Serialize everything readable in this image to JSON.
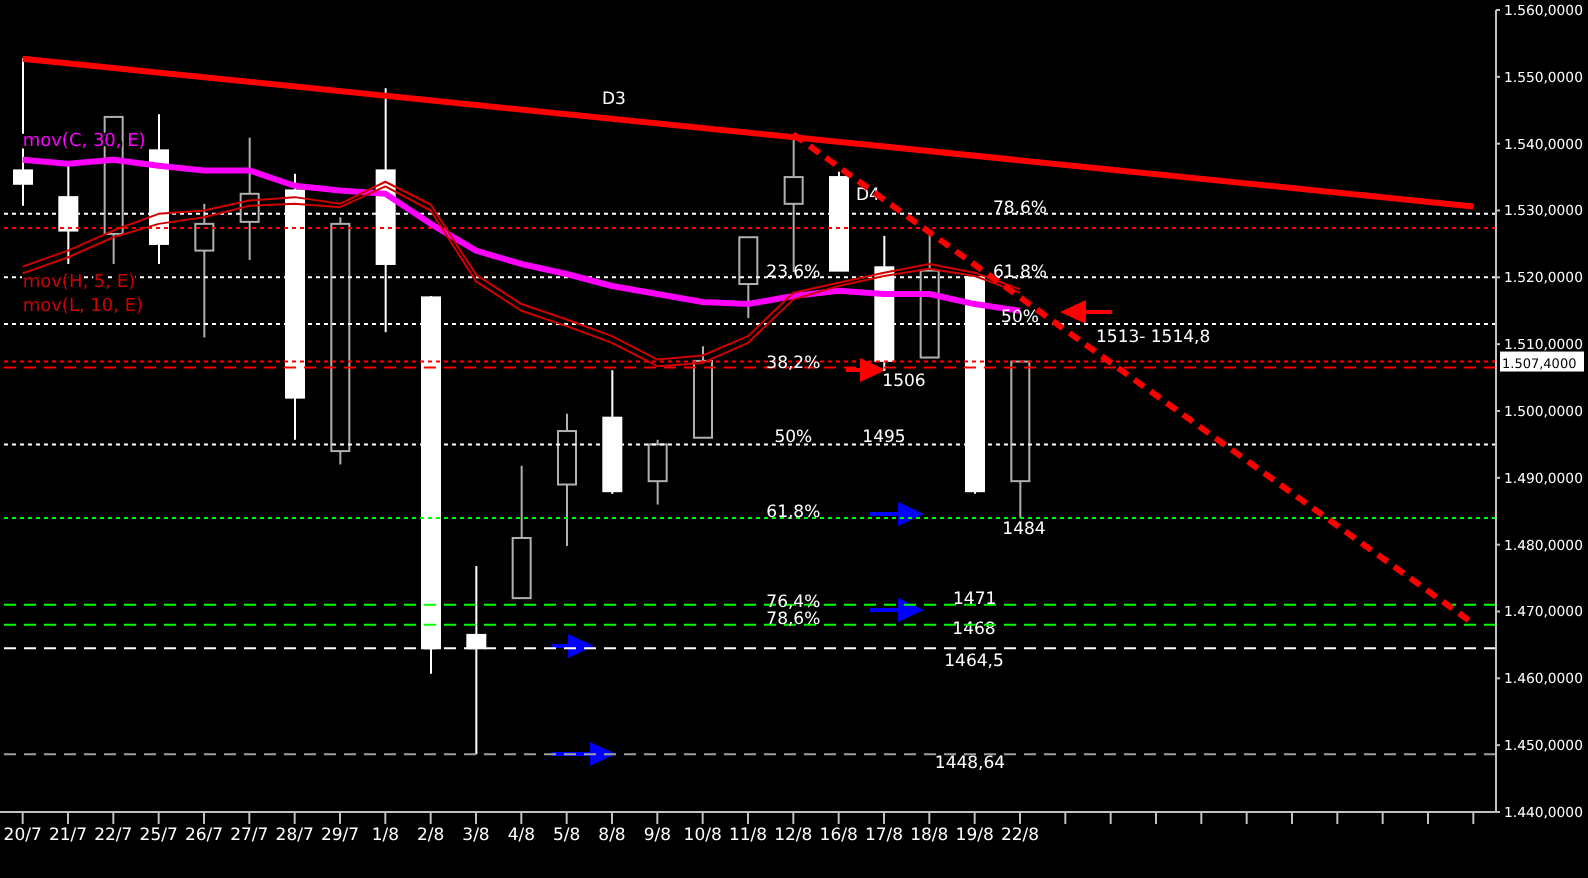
{
  "chart_data": {
    "type": "candlestick",
    "categories": [
      "20/7",
      "21/7",
      "22/7",
      "25/7",
      "26/7",
      "27/7",
      "28/7",
      "29/7",
      "1/8",
      "2/8",
      "3/8",
      "4/8",
      "5/8",
      "8/8",
      "9/8",
      "10/8",
      "11/8",
      "12/8",
      "16/8",
      "17/8",
      "18/8",
      "19/8",
      "22/8",
      null,
      null,
      null,
      null,
      null,
      null,
      null,
      null,
      null,
      null
    ],
    "ohlc": [
      [
        1536,
        1552.8,
        1530.7,
        1534
      ],
      [
        1532,
        1536.7,
        1522,
        1527
      ],
      [
        1526.5,
        1544,
        1522,
        1544
      ],
      [
        1539,
        1544.4,
        1522,
        1525
      ],
      [
        1524,
        1531,
        1511,
        1528
      ],
      [
        1528.3,
        1540.9,
        1522.6,
        1532.5
      ],
      [
        1533,
        1535.5,
        1495.7,
        1502
      ],
      [
        1494,
        1529,
        1492,
        1528
      ],
      [
        1536,
        1548.3,
        1511.8,
        1522
      ],
      [
        1517,
        1517.2,
        1460.7,
        1464.5
      ],
      [
        1466.5,
        1476.8,
        1448.64,
        1464.5
      ],
      [
        1472,
        1491.8,
        1472,
        1481
      ],
      [
        1489,
        1499.6,
        1479.8,
        1497
      ],
      [
        1499,
        1506.1,
        1487.6,
        1488
      ],
      [
        1489.5,
        1495.7,
        1486,
        1495
      ],
      [
        1496,
        1509.7,
        1496,
        1507.5
      ],
      [
        1519,
        1526,
        1513.9,
        1526
      ],
      [
        1531,
        1541.4,
        1520.8,
        1535
      ],
      [
        1535,
        1535.8,
        1521,
        1521
      ],
      [
        1521.5,
        1526.2,
        1506,
        1507.5
      ],
      [
        1508,
        1527,
        1508,
        1521
      ],
      [
        1520,
        1520.2,
        1487.6,
        1488
      ],
      [
        1489.5,
        1507.4,
        1484,
        1507.4
      ],
      null,
      null,
      null,
      null,
      null,
      null,
      null,
      null,
      null,
      null
    ],
    "series": [
      {
        "type": "line",
        "name": "mov(C, 30, E)",
        "color": "#ff00ff",
        "values": [
          1537.6,
          1537,
          1537.6,
          1536.7,
          1536,
          1536,
          1533.7,
          1533,
          1532.5,
          1528,
          1524,
          1522,
          1520.5,
          1518.7,
          1517.5,
          1516.3,
          1516,
          1517.2,
          1518,
          1517.5,
          1517.5,
          1516,
          1515,
          null,
          null,
          null,
          null,
          null,
          null,
          null,
          null,
          null,
          null
        ]
      },
      {
        "type": "line",
        "name": "mov(H, 5, E)",
        "color": "#d00000",
        "values": [
          1521.6,
          1524,
          1527,
          1529.5,
          1530,
          1531.5,
          1532,
          1531,
          1534.3,
          1530.9,
          1520.4,
          1516,
          1513.7,
          1511.2,
          1507.7,
          1508.3,
          1511.2,
          1517.7,
          1519.2,
          1520.7,
          1522,
          1520.7,
          1518.2,
          null,
          null,
          null,
          null,
          null,
          null,
          null,
          null,
          null,
          null
        ]
      },
      {
        "type": "line",
        "name": "mov(L, 10, E)",
        "color": "#d00000",
        "values": [
          1520.6,
          1523,
          1526,
          1528,
          1529,
          1530.7,
          1531,
          1530.5,
          1533.6,
          1530,
          1519.4,
          1515,
          1512.7,
          1510.2,
          1506.7,
          1507.2,
          1510.2,
          1516.7,
          1518.7,
          1520.2,
          1521.3,
          1520.2,
          1517.7,
          null,
          null,
          null,
          null,
          null,
          null,
          null,
          null,
          null,
          null
        ]
      },
      {
        "type": "line",
        "color": "#ff0000",
        "values": [
          1552.7,
          null,
          null,
          null,
          null,
          null,
          null,
          null,
          null,
          null,
          null,
          null,
          null,
          null,
          null,
          null,
          null,
          null,
          null,
          null,
          null,
          null,
          null,
          null,
          null,
          null,
          null,
          null,
          null,
          null,
          null,
          null,
          1530.6
        ]
      },
      {
        "type": "line",
        "color": "#ff0000",
        "line_style": "dashed",
        "values": [
          null,
          null,
          null,
          null,
          null,
          null,
          null,
          null,
          null,
          null,
          null,
          null,
          null,
          null,
          null,
          null,
          null,
          1541.4,
          null,
          null,
          null,
          null,
          null,
          null,
          null,
          null,
          null,
          null,
          null,
          null,
          null,
          null,
          1468.2
        ]
      }
    ],
    "ylim": [
      1440,
      1560
    ],
    "yticks": [
      {
        "value": 1440,
        "label": "1.440,0000"
      },
      {
        "value": 1450,
        "label": "1.450,0000"
      },
      {
        "value": 1460,
        "label": "1.460,0000"
      },
      {
        "value": 1470,
        "label": "1.470,0000"
      },
      {
        "value": 1480,
        "label": "1.480,0000"
      },
      {
        "value": 1490,
        "label": "1.490,0000"
      },
      {
        "value": 1500,
        "label": "1.500,0000"
      },
      {
        "value": 1510,
        "label": "1.510,0000"
      },
      {
        "value": 1520,
        "label": "1.520,0000"
      },
      {
        "value": 1530,
        "label": "1.530,0000"
      },
      {
        "value": 1540,
        "label": "1.540,0000"
      },
      {
        "value": 1550,
        "label": "1.550,0000"
      },
      {
        "value": 1560,
        "label": "1.560,0000"
      }
    ],
    "ref_lines": [
      {
        "axis": "y",
        "value": 1529.5,
        "color": "#ffffff",
        "line_style": "dotted"
      },
      {
        "axis": "y",
        "value": 1527.4,
        "color": "#ff0000",
        "line_style": "dotted"
      },
      {
        "axis": "y",
        "value": 1520,
        "color": "#ffffff",
        "line_style": "dotted"
      },
      {
        "axis": "y",
        "value": 1513,
        "color": "#ffffff",
        "line_style": "dotted"
      },
      {
        "axis": "y",
        "value": 1507.4,
        "color": "#ff0000",
        "line_style": "dotted",
        "label": "1.507,4000"
      },
      {
        "axis": "y",
        "value": 1506.5,
        "color": "#ff0000",
        "line_style": "dashed"
      },
      {
        "axis": "y",
        "value": 1495,
        "color": "#ffffff",
        "line_style": "dotted"
      },
      {
        "axis": "y",
        "value": 1484,
        "color": "#00ff00",
        "line_style": "dotted"
      },
      {
        "axis": "y",
        "value": 1471,
        "color": "#00ff00",
        "line_style": "dashed"
      },
      {
        "axis": "y",
        "value": 1468,
        "color": "#00ff00",
        "line_style": "dashed"
      },
      {
        "axis": "y",
        "value": 1464.5,
        "color": "#ffffff",
        "line_style": "dashed"
      },
      {
        "axis": "y",
        "value": 1448.64,
        "color": "#a0a0a0",
        "line_style": "dashed"
      }
    ],
    "annotations": [
      "D3",
      "D4",
      {
        "text": "78,6%",
        "x": "22/8",
        "y": 1530.5
      },
      {
        "text": "23,6%",
        "x": "12/8",
        "y": 1521
      },
      {
        "text": "61,8%",
        "x": "22/8",
        "y": 1521
      },
      {
        "text": "50%",
        "x": "22/8",
        "y": 1514.2
      },
      "1513- 1514,8",
      {
        "text": "38,2%",
        "x": "12/8",
        "y": 1507.4
      },
      "1506",
      {
        "text": "50%",
        "x": "12/8",
        "y": 1496.2
      },
      {
        "text": "1495",
        "x": "17/8",
        "y": 1496.2
      },
      {
        "text": "61,8%",
        "x": "12/8",
        "y": 1485
      },
      "1484",
      {
        "text": "76,4%",
        "x": "12/8",
        "y": 1471.6
      },
      {
        "text": "78,6%",
        "x": "12/8",
        "y": 1469
      },
      {
        "text": "1471",
        "x": "19/8",
        "y": 1472
      },
      "1468",
      "1464,5",
      "1448,64"
    ]
  }
}
